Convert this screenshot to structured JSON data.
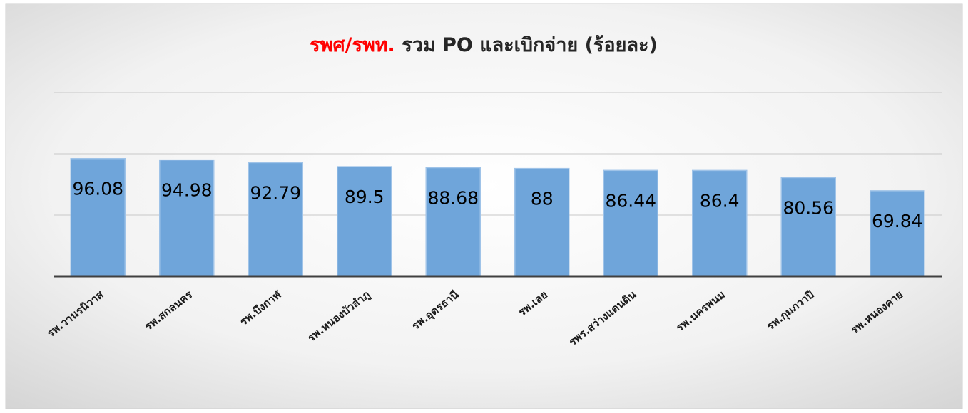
{
  "chart_data": {
    "type": "bar",
    "title_prefix": "รพศ/รพท.",
    "title_prefix_color": "#ff0000",
    "title": "รวม PO และเบิกจ่าย (ร้อยละ)",
    "categories": [
      "รพ.วานรนิวาส",
      "รพ.สกลนคร",
      "รพ.บึงกาฬ",
      "รพ.หนองบัวลำภู",
      "รพ.อุดรธานี",
      "รพ.เลย",
      "รพร.สว่างแดนดิน",
      "รพ.นครพนม",
      "รพ.กุมภวาปี",
      "รพ.หนองคาย"
    ],
    "values": [
      96.08,
      94.98,
      92.79,
      89.5,
      88.68,
      88,
      86.44,
      86.4,
      80.56,
      69.84
    ],
    "color": "#6fa5da",
    "ylim": [
      0,
      150
    ],
    "yticks": [
      0,
      50,
      100,
      150
    ],
    "grid": true
  }
}
